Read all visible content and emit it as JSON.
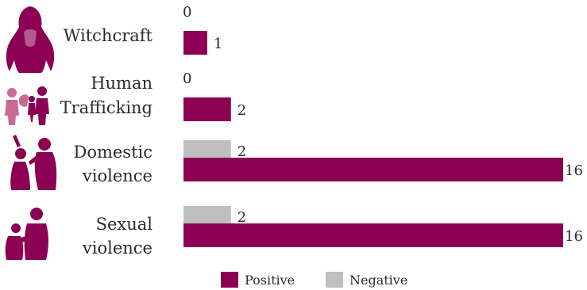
{
  "colors": {
    "positive": "#8b0052",
    "negative": "#bfbfbf",
    "icon_dark": "#8b0052",
    "icon_light": "#c76b96"
  },
  "chart_data": {
    "type": "bar",
    "orientation": "horizontal",
    "categories": [
      {
        "lines": [
          "Witchcraft"
        ],
        "icon": "witchcraft-woman-icon"
      },
      {
        "lines": [
          "Human",
          "Trafficking"
        ],
        "icon": "human-trafficking-icon"
      },
      {
        "lines": [
          "Domestic",
          "violence"
        ],
        "icon": "domestic-violence-icon"
      },
      {
        "lines": [
          "Sexual",
          "violence"
        ],
        "icon": "sexual-violence-icon"
      }
    ],
    "series": [
      {
        "name": "Negative",
        "values": [
          0,
          0,
          2,
          2
        ]
      },
      {
        "name": "Positive",
        "values": [
          1,
          2,
          16,
          16
        ]
      }
    ],
    "xlim": [
      0,
      16
    ],
    "grid": false,
    "legend_position": "bottom"
  }
}
